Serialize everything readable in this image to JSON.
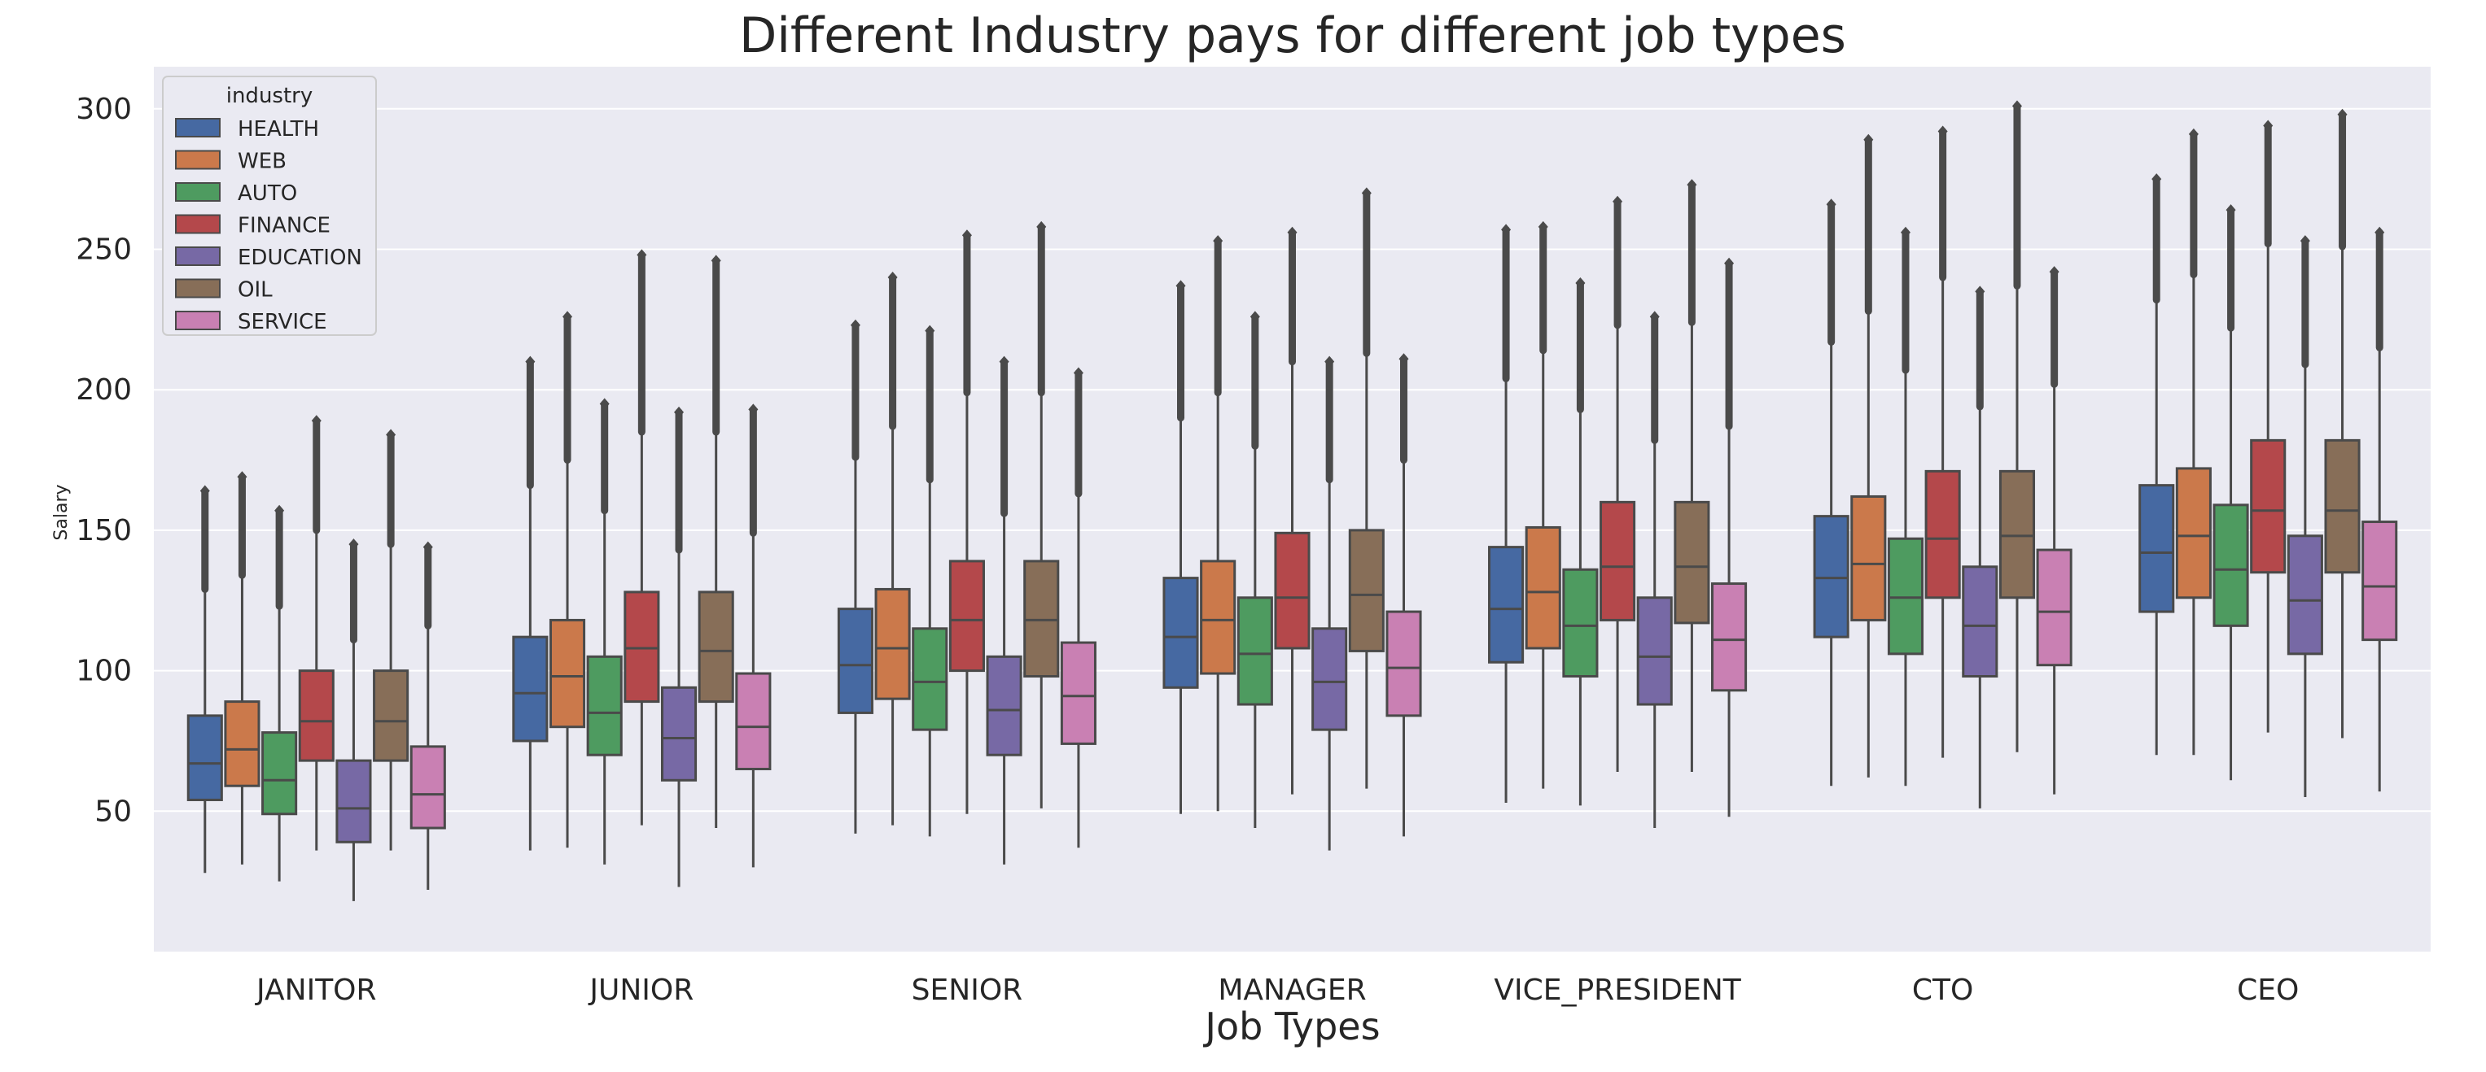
{
  "chart_data": {
    "type": "box",
    "title": "Different Industry pays for different job types",
    "xlabel": "Job Types",
    "ylabel": "Salary",
    "ylim": [
      0,
      315
    ],
    "yticks": [
      50,
      100,
      150,
      200,
      250,
      300
    ],
    "grid": true,
    "legend": {
      "title": "industry",
      "position": "top-left"
    },
    "categories": [
      "JANITOR",
      "JUNIOR",
      "SENIOR",
      "MANAGER",
      "VICE_PRESIDENT",
      "CTO",
      "CEO"
    ],
    "series": [
      {
        "name": "HEALTH",
        "color": "#4c72b0",
        "boxes": [
          {
            "low": 28,
            "q1": 54,
            "median": 67,
            "q3": 84,
            "high": 129,
            "max": 164
          },
          {
            "low": 36,
            "q1": 75,
            "median": 92,
            "q3": 112,
            "high": 166,
            "max": 210
          },
          {
            "low": 42,
            "q1": 85,
            "median": 102,
            "q3": 122,
            "high": 176,
            "max": 223
          },
          {
            "low": 49,
            "q1": 94,
            "median": 112,
            "q3": 133,
            "high": 190,
            "max": 237
          },
          {
            "low": 53,
            "q1": 103,
            "median": 122,
            "q3": 144,
            "high": 204,
            "max": 257
          },
          {
            "low": 59,
            "q1": 112,
            "median": 133,
            "q3": 155,
            "high": 217,
            "max": 266
          },
          {
            "low": 70,
            "q1": 121,
            "median": 142,
            "q3": 166,
            "high": 232,
            "max": 275
          }
        ]
      },
      {
        "name": "WEB",
        "color": "#dd8452",
        "boxes": [
          {
            "low": 31,
            "q1": 59,
            "median": 72,
            "q3": 89,
            "high": 134,
            "max": 169
          },
          {
            "low": 37,
            "q1": 80,
            "median": 98,
            "q3": 118,
            "high": 175,
            "max": 226
          },
          {
            "low": 45,
            "q1": 90,
            "median": 108,
            "q3": 129,
            "high": 187,
            "max": 240
          },
          {
            "low": 50,
            "q1": 99,
            "median": 118,
            "q3": 139,
            "high": 199,
            "max": 253
          },
          {
            "low": 58,
            "q1": 108,
            "median": 128,
            "q3": 151,
            "high": 214,
            "max": 258
          },
          {
            "low": 62,
            "q1": 118,
            "median": 138,
            "q3": 162,
            "high": 228,
            "max": 289
          },
          {
            "low": 70,
            "q1": 126,
            "median": 148,
            "q3": 172,
            "high": 241,
            "max": 291
          }
        ]
      },
      {
        "name": "AUTO",
        "color": "#55a868",
        "boxes": [
          {
            "low": 25,
            "q1": 49,
            "median": 61,
            "q3": 78,
            "high": 123,
            "max": 157
          },
          {
            "low": 31,
            "q1": 70,
            "median": 85,
            "q3": 105,
            "high": 157,
            "max": 195
          },
          {
            "low": 41,
            "q1": 79,
            "median": 96,
            "q3": 115,
            "high": 168,
            "max": 221
          },
          {
            "low": 44,
            "q1": 88,
            "median": 106,
            "q3": 126,
            "high": 180,
            "max": 226
          },
          {
            "low": 52,
            "q1": 98,
            "median": 116,
            "q3": 136,
            "high": 193,
            "max": 238
          },
          {
            "low": 59,
            "q1": 106,
            "median": 126,
            "q3": 147,
            "high": 207,
            "max": 256
          },
          {
            "low": 61,
            "q1": 116,
            "median": 136,
            "q3": 159,
            "high": 222,
            "max": 264
          }
        ]
      },
      {
        "name": "FINANCE",
        "color": "#c44e52",
        "boxes": [
          {
            "low": 36,
            "q1": 68,
            "median": 82,
            "q3": 100,
            "high": 150,
            "max": 189
          },
          {
            "low": 45,
            "q1": 89,
            "median": 108,
            "q3": 128,
            "high": 185,
            "max": 248
          },
          {
            "low": 49,
            "q1": 100,
            "median": 118,
            "q3": 139,
            "high": 199,
            "max": 255
          },
          {
            "low": 56,
            "q1": 108,
            "median": 126,
            "q3": 149,
            "high": 210,
            "max": 256
          },
          {
            "low": 64,
            "q1": 118,
            "median": 137,
            "q3": 160,
            "high": 223,
            "max": 267
          },
          {
            "low": 69,
            "q1": 126,
            "median": 147,
            "q3": 171,
            "high": 240,
            "max": 292
          },
          {
            "low": 78,
            "q1": 135,
            "median": 157,
            "q3": 182,
            "high": 252,
            "max": 294
          }
        ]
      },
      {
        "name": "EDUCATION",
        "color": "#8172b3",
        "boxes": [
          {
            "low": 18,
            "q1": 39,
            "median": 51,
            "q3": 68,
            "high": 111,
            "max": 145
          },
          {
            "low": 23,
            "q1": 61,
            "median": 76,
            "q3": 94,
            "high": 143,
            "max": 192
          },
          {
            "low": 31,
            "q1": 70,
            "median": 86,
            "q3": 105,
            "high": 156,
            "max": 210
          },
          {
            "low": 36,
            "q1": 79,
            "median": 96,
            "q3": 115,
            "high": 168,
            "max": 210
          },
          {
            "low": 44,
            "q1": 88,
            "median": 105,
            "q3": 126,
            "high": 182,
            "max": 226
          },
          {
            "low": 51,
            "q1": 98,
            "median": 116,
            "q3": 137,
            "high": 194,
            "max": 235
          },
          {
            "low": 55,
            "q1": 106,
            "median": 125,
            "q3": 148,
            "high": 209,
            "max": 253
          }
        ]
      },
      {
        "name": "OIL",
        "color": "#937860",
        "boxes": [
          {
            "low": 36,
            "q1": 68,
            "median": 82,
            "q3": 100,
            "high": 145,
            "max": 184
          },
          {
            "low": 44,
            "q1": 89,
            "median": 107,
            "q3": 128,
            "high": 185,
            "max": 246
          },
          {
            "low": 51,
            "q1": 98,
            "median": 118,
            "q3": 139,
            "high": 199,
            "max": 258
          },
          {
            "low": 58,
            "q1": 107,
            "median": 127,
            "q3": 150,
            "high": 213,
            "max": 270
          },
          {
            "low": 64,
            "q1": 117,
            "median": 137,
            "q3": 160,
            "high": 224,
            "max": 273
          },
          {
            "low": 71,
            "q1": 126,
            "median": 148,
            "q3": 171,
            "high": 237,
            "max": 301
          },
          {
            "low": 76,
            "q1": 135,
            "median": 157,
            "q3": 182,
            "high": 251,
            "max": 298
          }
        ]
      },
      {
        "name": "SERVICE",
        "color": "#da8bc3",
        "boxes": [
          {
            "low": 22,
            "q1": 44,
            "median": 56,
            "q3": 73,
            "high": 116,
            "max": 144
          },
          {
            "low": 30,
            "q1": 65,
            "median": 80,
            "q3": 99,
            "high": 149,
            "max": 193
          },
          {
            "low": 37,
            "q1": 74,
            "median": 91,
            "q3": 110,
            "high": 163,
            "max": 206
          },
          {
            "low": 41,
            "q1": 84,
            "median": 101,
            "q3": 121,
            "high": 175,
            "max": 211
          },
          {
            "low": 48,
            "q1": 93,
            "median": 111,
            "q3": 131,
            "high": 187,
            "max": 245
          },
          {
            "low": 56,
            "q1": 102,
            "median": 121,
            "q3": 143,
            "high": 202,
            "max": 242
          },
          {
            "low": 57,
            "q1": 111,
            "median": 130,
            "q3": 153,
            "high": 215,
            "max": 256
          }
        ]
      }
    ]
  }
}
